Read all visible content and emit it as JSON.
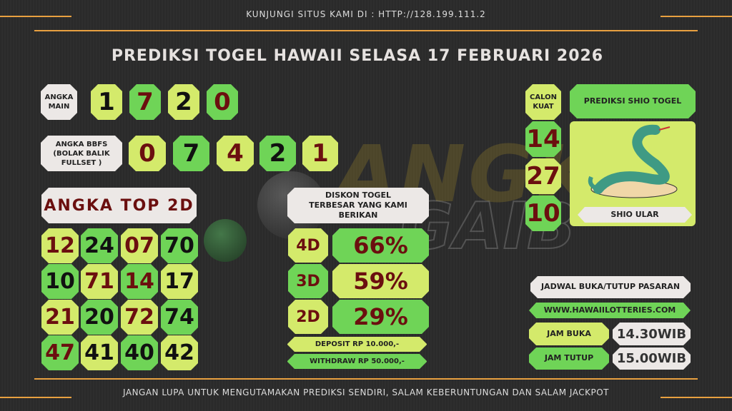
{
  "header": {
    "visit": "KUNJUNGI SITUS KAMI DI : HTTP://128.199.111.2",
    "title": "PREDIKSI TOGEL HAWAII SELASA 17 FEBRUARI 2026"
  },
  "watermark": "ANGKA GAIB",
  "angka_main": {
    "label": "ANGKA MAIN",
    "digits": [
      "1",
      "7",
      "2",
      "0"
    ]
  },
  "bbfs": {
    "label": "ANGKA BBFS (BOLAK BALIK FULLSET )",
    "digits": [
      "0",
      "7",
      "4",
      "2",
      "1"
    ]
  },
  "top2d": {
    "label": "ANGKA TOP 2D",
    "rows": [
      [
        "12",
        "24",
        "07",
        "70"
      ],
      [
        "10",
        "71",
        "14",
        "17"
      ],
      [
        "21",
        "20",
        "72",
        "74"
      ],
      [
        "47",
        "41",
        "40",
        "42"
      ]
    ]
  },
  "diskon": {
    "label": "DISKON TOGEL TERBESAR YANG KAMI BERIKAN",
    "rows": [
      {
        "type": "4D",
        "value": "66%"
      },
      {
        "type": "3D",
        "value": "59%"
      },
      {
        "type": "2D",
        "value": "29%"
      }
    ],
    "deposit": "DEPOSIT RP 10.000,-",
    "withdraw": "WITHDRAW RP 50.000,-"
  },
  "calon_kuat": {
    "label": "CALON KUAT",
    "numbers": [
      "14",
      "27",
      "10"
    ]
  },
  "shio": {
    "header": "PREDIKSI SHIO TOGEL",
    "name": "SHIO ULAR"
  },
  "jadwal": {
    "label": "JADWAL BUKA/TUTUP PASARAN",
    "website": "WWW.HAWAIILOTTERIES.COM",
    "buka_label": "JAM BUKA",
    "buka": "14.30WIB",
    "tutup_label": "JAM TUTUP",
    "tutup": "15.00WIB"
  },
  "footer": "JANGAN LUPA UNTUK MENGUTAMAKAN PREDIKSI SENDIRI, SALAM KEBERUNTUNGAN DAN SALAM JACKPOT",
  "colors": {
    "light_green": "#d4ea6b",
    "green": "#6fd457",
    "dark_red": "#6b0f0f",
    "accent": "#e8a040"
  }
}
